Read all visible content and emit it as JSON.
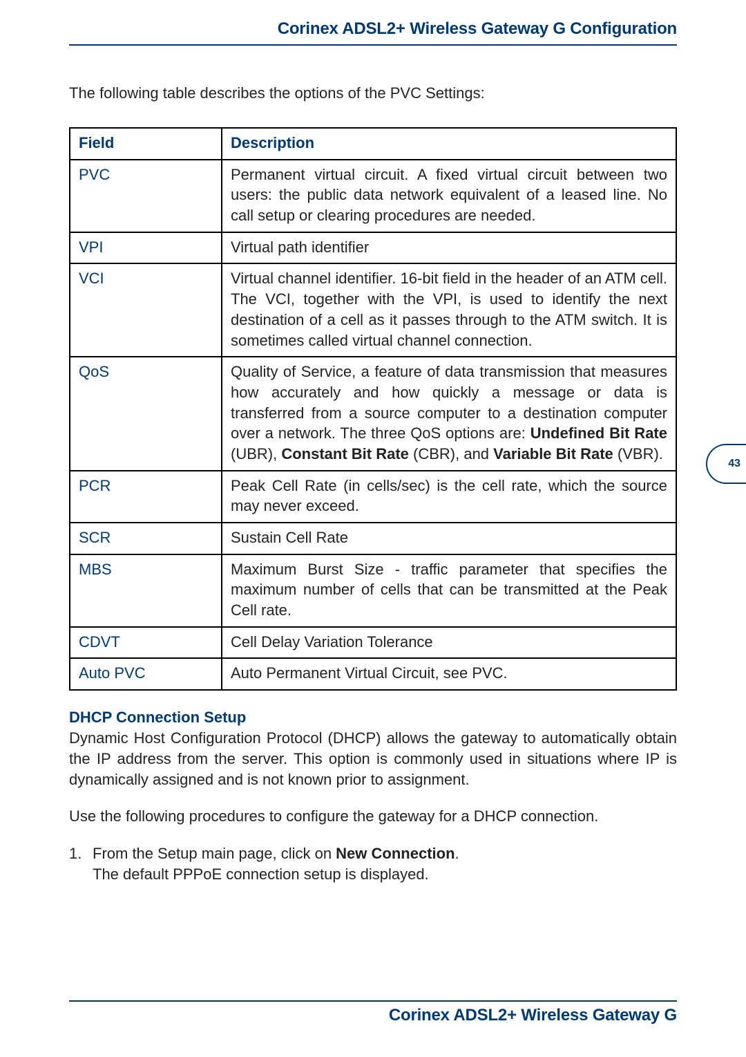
{
  "header": {
    "title": "Corinex ADSL2+ Wireless Gateway G Configuration"
  },
  "intro": "The following table describes the options of the PVC Settings:",
  "table": {
    "headers": {
      "field": "Field",
      "description": "Description"
    },
    "rows": [
      {
        "field": "PVC",
        "desc_html": "Permanent virtual circuit. A fixed virtual circuit between two users: the public data network equivalent of a leased line. No call setup or clearing procedures are needed."
      },
      {
        "field": "VPI",
        "desc_html": "Virtual path identifier"
      },
      {
        "field": "VCI",
        "desc_html": "Virtual channel identifier. 16-bit field in the header of an ATM cell. The VCI, together with the VPI, is used to identify the next destination of a cell as it passes through to the ATM switch. It is sometimes called virtual channel connection."
      },
      {
        "field": "QoS",
        "desc_html": "Quality of Service, a feature of data transmission that measures how accurately and how quickly a message or data is transferred from a source computer to a destination computer over a network. The three QoS options are: <span class=\"b\">Undefined Bit Rate</span> (UBR), <span class=\"b\">Constant Bit Rate</span> (CBR), and <span class=\"b\">Variable Bit Rate</span> (VBR)."
      },
      {
        "field": "PCR",
        "desc_html": "Peak Cell Rate (in cells/sec) is the cell rate, which the source may never exceed."
      },
      {
        "field": "SCR",
        "desc_html": "Sustain Cell Rate"
      },
      {
        "field": "MBS",
        "desc_html": "Maximum Burst Size - traffic parameter that specifies the maximum number of cells that can be transmitted at the Peak Cell rate."
      },
      {
        "field": "CDVT",
        "desc_html": "Cell Delay Variation Tolerance"
      },
      {
        "field": "Auto PVC",
        "desc_html": "Auto Permanent Virtual Circuit, see PVC."
      }
    ]
  },
  "dhcp": {
    "heading": "DHCP Connection Setup",
    "paragraph": "Dynamic Host Configuration Protocol (DHCP) allows the gateway to automatically obtain the IP address from the server. This option is commonly used in situations where IP is dynamically assigned and is not known prior to assignment.",
    "lead": "Use the following procedures to configure the gateway for a DHCP connection.",
    "step_num": "1.",
    "step_line1_pre": "From the Setup main page, click on ",
    "step_line1_bold": "New Connection",
    "step_line1_post": ".",
    "step_line2": "The default PPPoE connection setup is displayed."
  },
  "page_number": "43",
  "footer": {
    "title": "Corinex ADSL2+ Wireless Gateway G"
  }
}
